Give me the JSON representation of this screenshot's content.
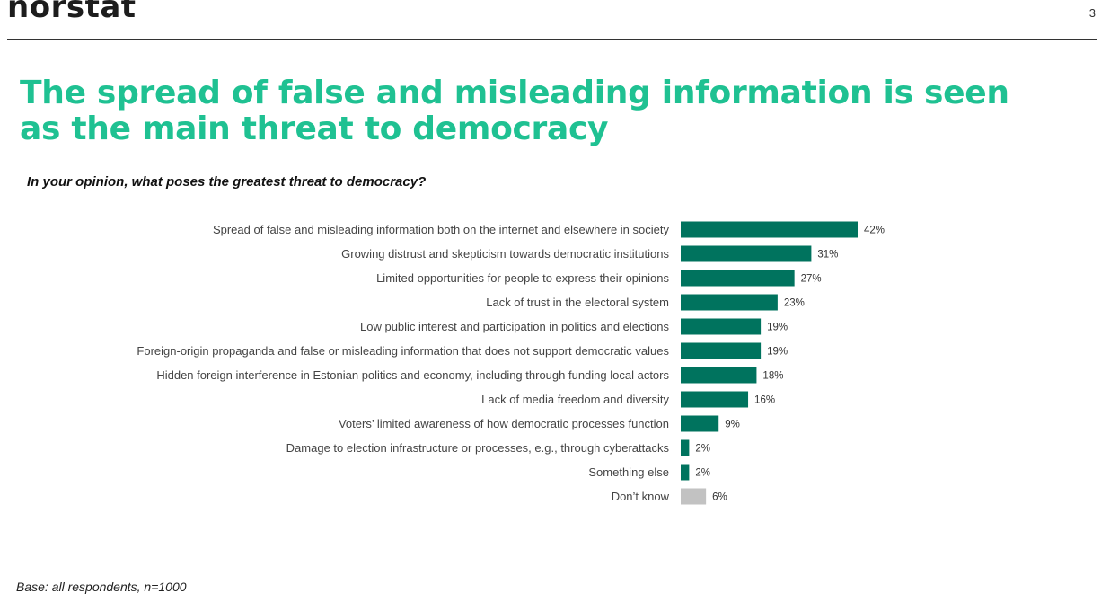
{
  "header": {
    "logo_text": "norstat",
    "page_number": "3"
  },
  "title": "The spread of false and misleading information is seen as the main threat to democracy",
  "question": "In your opinion, what poses the greatest threat to democracy?",
  "footnote": "Base: all respondents, n=1000",
  "colors": {
    "title": "#1fc192",
    "bar": "#00735e",
    "bar_dont_know": "#c2c2c2"
  },
  "chart_data": {
    "type": "bar",
    "orientation": "horizontal",
    "categories": [
      "Spread of false and misleading information both on the internet and elsewhere in society",
      "Growing distrust and skepticism towards democratic institutions",
      "Limited opportunities for people to express their opinions",
      "Lack of trust in the electoral system",
      "Low public interest and participation in politics and elections",
      "Foreign-origin propaganda and false or misleading information that does not support democratic values",
      "Hidden foreign interference in Estonian politics and economy, including through funding local actors",
      "Lack of media freedom and diversity",
      "Voters’ limited awareness of how democratic processes function",
      "Damage to election infrastructure or processes, e.g., through cyberattacks",
      "Something else",
      "Don’t know"
    ],
    "values": [
      42,
      31,
      27,
      23,
      19,
      19,
      18,
      16,
      9,
      2,
      2,
      6
    ],
    "value_labels": [
      "42%",
      "31%",
      "27%",
      "23%",
      "19%",
      "19%",
      "18%",
      "16%",
      "9%",
      "2%",
      "2%",
      "6%"
    ],
    "highlight_last_as_neutral": true,
    "xlim": [
      0,
      42
    ],
    "grid": false,
    "legend": "none"
  }
}
